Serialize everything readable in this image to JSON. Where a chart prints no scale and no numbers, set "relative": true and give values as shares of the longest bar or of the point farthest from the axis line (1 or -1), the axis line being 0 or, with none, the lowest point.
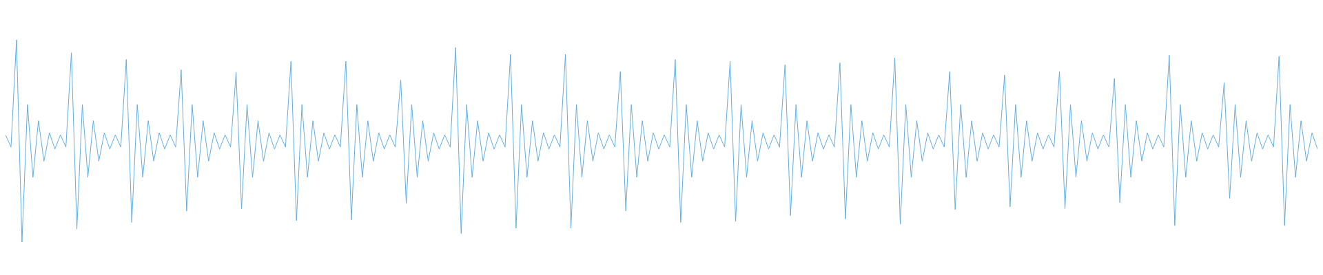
{
  "chart_data": {
    "type": "line",
    "relative": true,
    "marker": "none",
    "line_style": "solid",
    "color": "#62ade2",
    "categories": [
      null,
      null,
      null,
      null,
      null,
      null,
      null,
      null,
      null,
      null,
      null,
      null,
      null,
      null,
      null,
      null,
      null,
      null,
      null,
      null,
      null,
      null,
      null,
      null,
      null,
      null,
      null,
      null,
      null,
      null,
      null,
      null,
      null,
      null,
      null,
      null,
      null,
      null,
      null,
      null,
      null,
      null,
      null,
      null,
      null,
      null,
      null,
      null,
      null,
      null,
      null,
      null,
      null,
      null,
      null,
      null,
      null,
      null,
      null,
      null,
      null,
      null,
      null,
      null,
      null,
      null,
      null,
      null,
      null,
      null,
      null,
      null,
      null,
      null,
      null,
      null,
      null,
      null,
      null,
      null,
      null,
      null,
      null,
      null,
      null,
      null,
      null,
      null,
      null,
      null,
      null,
      null,
      null,
      null,
      null,
      null,
      null,
      null,
      null,
      null,
      null,
      null,
      null,
      null,
      null,
      null,
      null,
      null,
      null,
      null,
      null,
      null,
      null,
      null,
      null,
      null,
      null,
      null,
      null,
      null,
      null,
      null,
      null,
      null,
      null,
      null,
      null,
      null,
      null,
      null,
      null,
      null,
      null,
      null,
      null,
      null,
      null,
      null,
      null,
      null,
      null,
      null,
      null,
      null,
      null,
      null,
      null,
      null,
      null,
      null,
      null,
      null,
      null,
      null,
      null,
      null,
      null,
      null,
      null,
      null,
      null,
      null,
      null,
      null,
      null,
      null,
      null,
      null,
      null,
      null,
      null,
      null,
      null,
      null,
      null,
      null,
      null,
      null,
      null,
      null,
      null,
      null,
      null,
      null,
      null,
      null,
      null,
      null,
      null,
      null,
      null,
      null,
      null,
      null,
      null,
      null,
      null,
      null,
      null,
      null,
      null,
      null,
      null,
      null,
      null,
      null,
      null,
      null,
      null,
      null,
      null,
      null,
      null,
      null,
      null,
      null,
      null,
      null,
      null,
      null,
      null,
      null,
      null,
      null,
      null,
      null,
      null,
      null,
      null,
      null,
      null,
      null,
      null,
      null,
      null,
      null,
      null,
      null,
      null,
      null
    ],
    "values": [
      0.53,
      0.47,
      1.0,
      0.0,
      0.68,
      0.32,
      0.6,
      0.4,
      0.54,
      0.46,
      0.53,
      0.47,
      0.936,
      0.064,
      0.68,
      0.32,
      0.6,
      0.4,
      0.54,
      0.46,
      0.53,
      0.47,
      0.903,
      0.097,
      0.68,
      0.32,
      0.6,
      0.4,
      0.54,
      0.46,
      0.53,
      0.47,
      0.852,
      0.153,
      0.68,
      0.32,
      0.6,
      0.4,
      0.54,
      0.46,
      0.53,
      0.47,
      0.839,
      0.165,
      0.68,
      0.32,
      0.6,
      0.4,
      0.54,
      0.46,
      0.53,
      0.47,
      0.894,
      0.106,
      0.68,
      0.32,
      0.6,
      0.4,
      0.54,
      0.46,
      0.53,
      0.47,
      0.894,
      0.11,
      0.68,
      0.32,
      0.6,
      0.4,
      0.54,
      0.46,
      0.53,
      0.47,
      0.801,
      0.191,
      0.68,
      0.32,
      0.6,
      0.4,
      0.54,
      0.46,
      0.53,
      0.47,
      0.962,
      0.042,
      0.68,
      0.32,
      0.6,
      0.4,
      0.54,
      0.46,
      0.53,
      0.47,
      0.928,
      0.068,
      0.68,
      0.32,
      0.6,
      0.4,
      0.54,
      0.46,
      0.53,
      0.47,
      0.928,
      0.068,
      0.68,
      0.32,
      0.6,
      0.4,
      0.54,
      0.46,
      0.53,
      0.47,
      0.843,
      0.153,
      0.68,
      0.32,
      0.6,
      0.4,
      0.54,
      0.46,
      0.53,
      0.47,
      0.903,
      0.097,
      0.68,
      0.32,
      0.6,
      0.4,
      0.54,
      0.46,
      0.53,
      0.47,
      0.894,
      0.102,
      0.68,
      0.32,
      0.6,
      0.4,
      0.54,
      0.46,
      0.53,
      0.47,
      0.877,
      0.131,
      0.68,
      0.32,
      0.6,
      0.4,
      0.54,
      0.46,
      0.53,
      0.47,
      0.886,
      0.114,
      0.68,
      0.32,
      0.6,
      0.4,
      0.54,
      0.46,
      0.53,
      0.47,
      0.911,
      0.089,
      0.68,
      0.32,
      0.6,
      0.4,
      0.54,
      0.46,
      0.53,
      0.47,
      0.843,
      0.161,
      0.68,
      0.32,
      0.6,
      0.4,
      0.54,
      0.46,
      0.53,
      0.47,
      0.826,
      0.174,
      0.68,
      0.32,
      0.6,
      0.4,
      0.54,
      0.46,
      0.53,
      0.47,
      0.843,
      0.165,
      0.68,
      0.32,
      0.6,
      0.4,
      0.54,
      0.46,
      0.53,
      0.47,
      0.809,
      0.195,
      0.68,
      0.32,
      0.6,
      0.4,
      0.54,
      0.46,
      0.53,
      0.47,
      0.924,
      0.081,
      0.68,
      0.32,
      0.6,
      0.4,
      0.54,
      0.46,
      0.53,
      0.47,
      0.788,
      0.216,
      0.68,
      0.32,
      0.6,
      0.4,
      0.54,
      0.46,
      0.53,
      0.47,
      0.919,
      0.081,
      0.68,
      0.32,
      0.6,
      0.4,
      0.54,
      0.46
    ]
  }
}
